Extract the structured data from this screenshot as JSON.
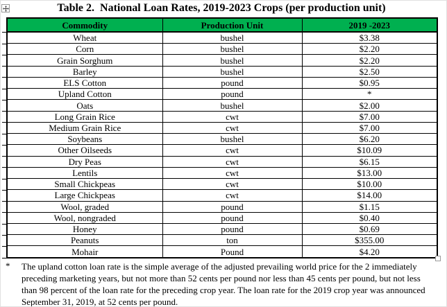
{
  "title": "Table 2.  National Loan Rates, 2019-2023 Crops (per production unit)",
  "colors": {
    "header_bg": "#00B050",
    "border": "#000000"
  },
  "table": {
    "columns": [
      "Commodity",
      "Production Unit",
      "2019 -2023"
    ],
    "rows": [
      [
        "Wheat",
        "bushel",
        "$3.38"
      ],
      [
        "Corn",
        "bushel",
        "$2.20"
      ],
      [
        "Grain Sorghum",
        "bushel",
        "$2.20"
      ],
      [
        "Barley",
        "bushel",
        "$2.50"
      ],
      [
        "ELS Cotton",
        "pound",
        "$0.95"
      ],
      [
        "Upland Cotton",
        "pound",
        "*"
      ],
      [
        "Oats",
        "bushel",
        "$2.00"
      ],
      [
        "Long Grain Rice",
        "cwt",
        "$7.00"
      ],
      [
        "Medium Grain Rice",
        "cwt",
        "$7.00"
      ],
      [
        "Soybeans",
        "bushel",
        "$6.20"
      ],
      [
        "Other Oilseeds",
        "cwt",
        "$10.09"
      ],
      [
        "Dry Peas",
        "cwt",
        "$6.15"
      ],
      [
        "Lentils",
        "cwt",
        "$13.00"
      ],
      [
        "Small Chickpeas",
        "cwt",
        "$10.00"
      ],
      [
        "Large Chickpeas",
        "cwt",
        "$14.00"
      ],
      [
        "Wool, graded",
        "pound",
        "$1.15"
      ],
      [
        "Wool, nongraded",
        "pound",
        "$0.40"
      ],
      [
        "Honey",
        "pound",
        "$0.69"
      ],
      [
        "Peanuts",
        "ton",
        "$355.00"
      ],
      [
        "Mohair",
        "Pound",
        "$4.20"
      ]
    ]
  },
  "footnote": {
    "marker": "*",
    "lines": [
      "The upland cotton loan rate is the simple average of the adjusted prevailing world price for the 2 immediately",
      "preceding marketing years, but not more than 52 cents per pound nor less than 45 cents per pound, but not less",
      "than 98 percent of the loan rate for the preceding crop year. The loan rate for the 2019 crop year was announced",
      "September 31, 2019, at 52 cents per pound."
    ]
  },
  "icons": {
    "table_move_handle": "four-way-move-arrow",
    "end_of_table_marker": "small-square"
  }
}
